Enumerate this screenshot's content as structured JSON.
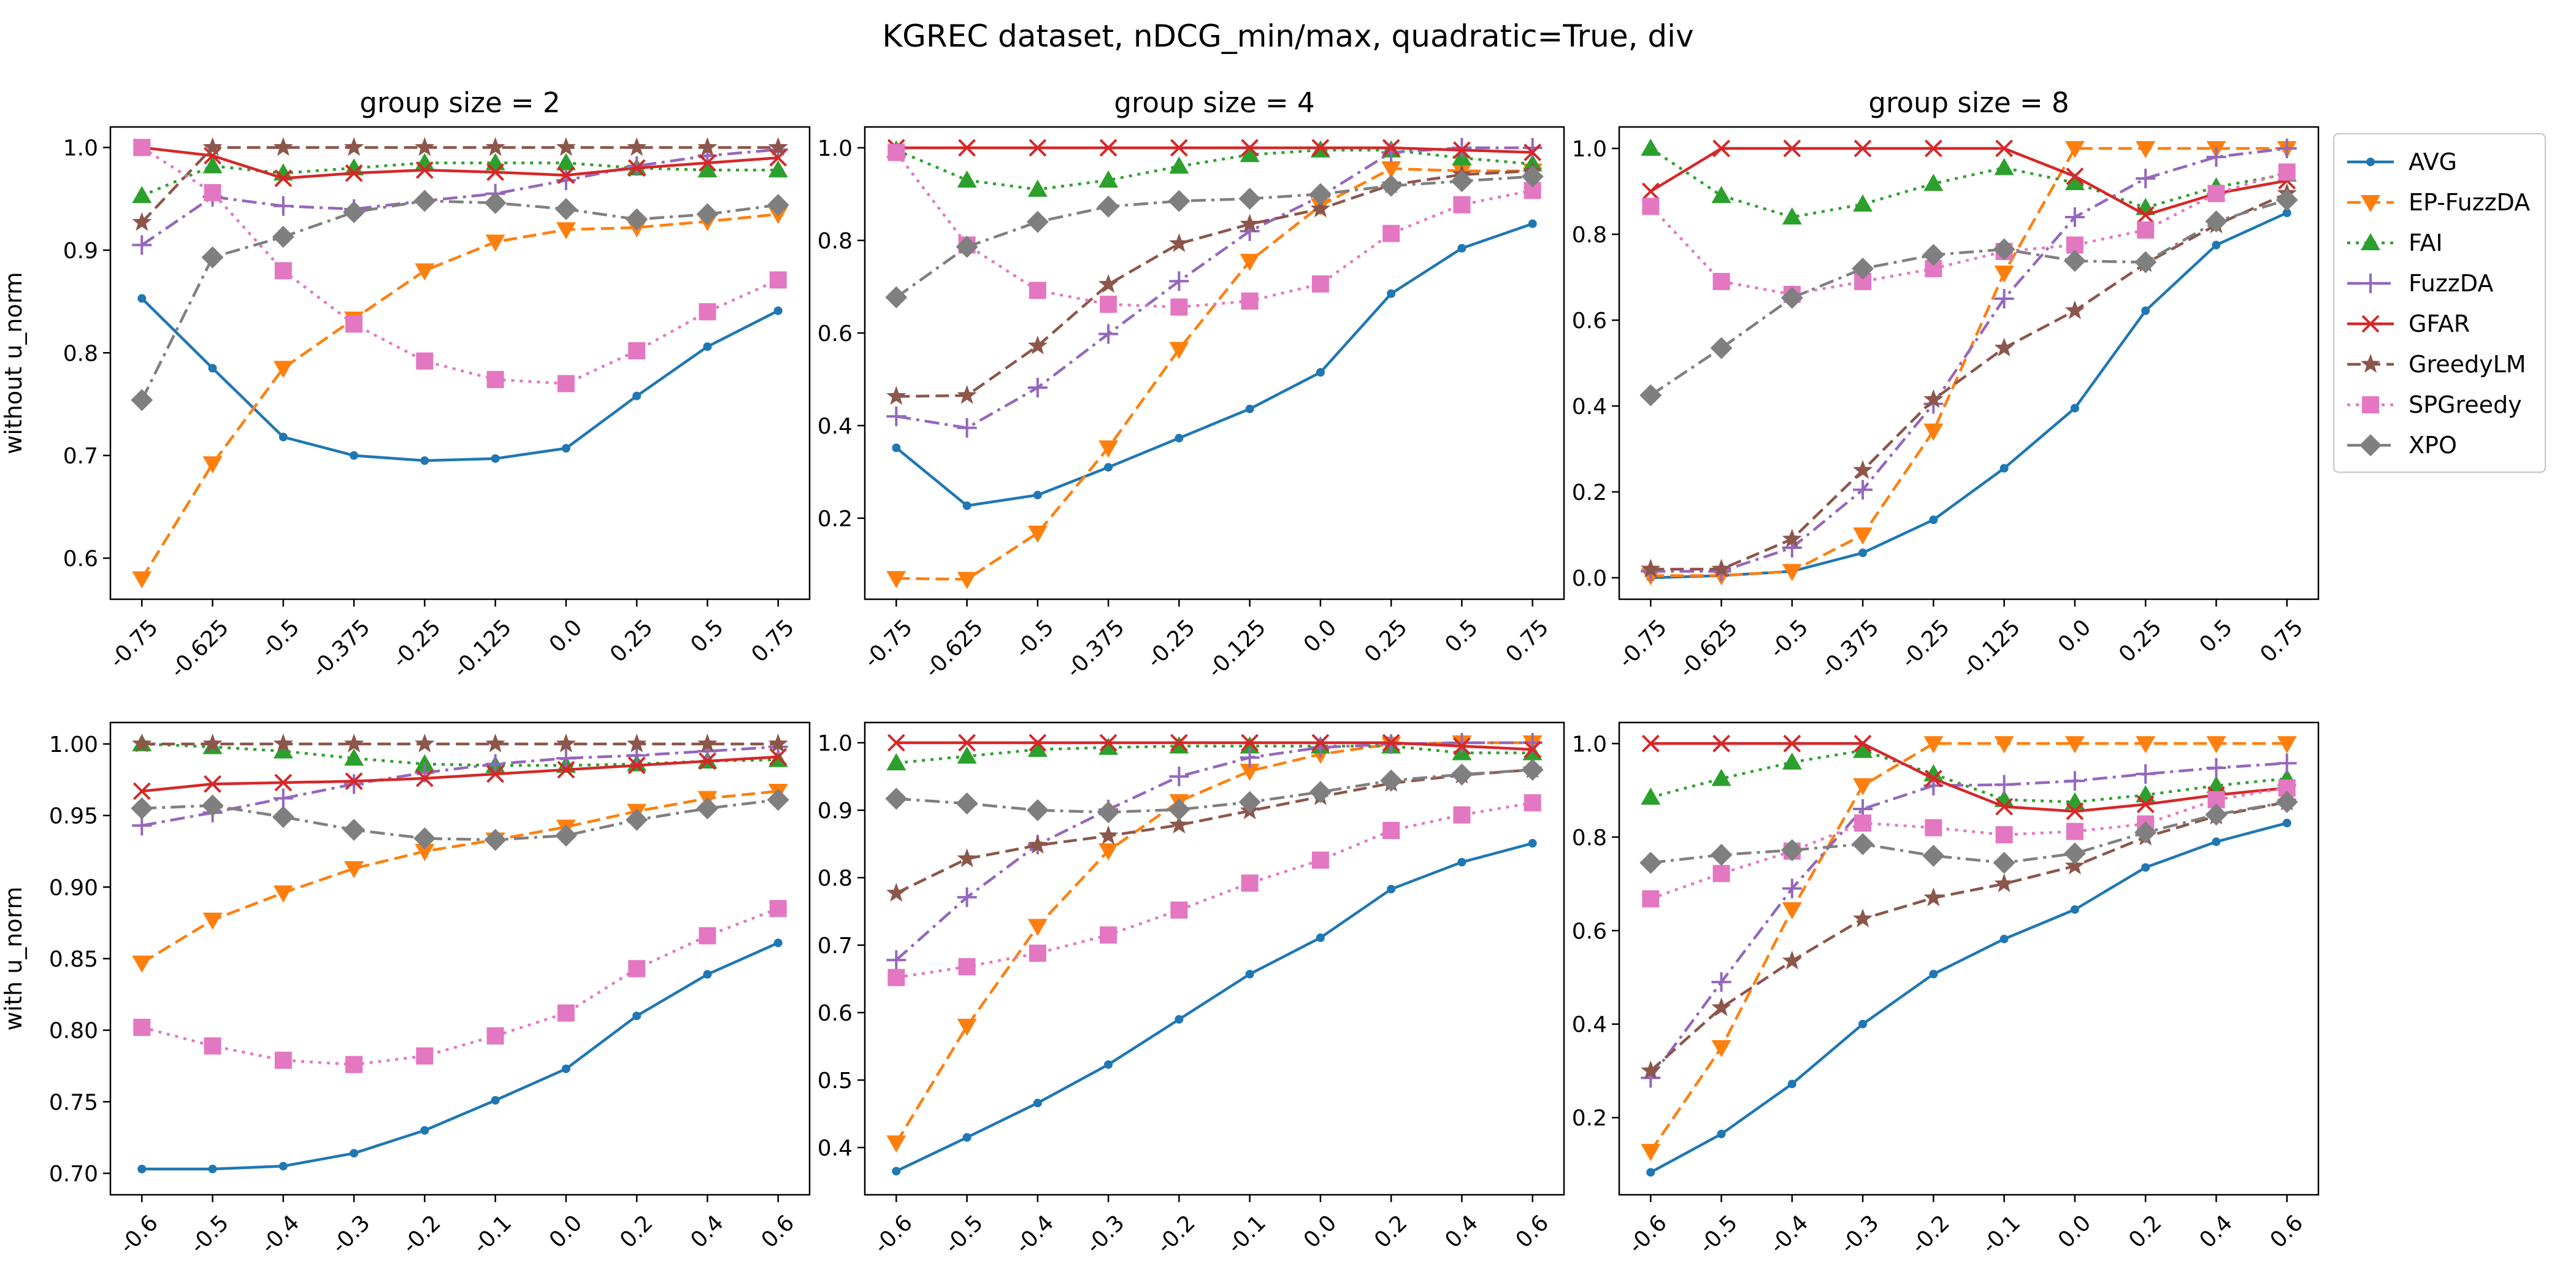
{
  "figure": {
    "title": "KGREC dataset, nDCG_min/max, quadratic=True, div"
  },
  "legend": {
    "placement": "right, outside, upper",
    "entries": [
      "AVG",
      "EP-FuzzDA",
      "FAI",
      "FuzzDA",
      "GFAR",
      "GreedyLM",
      "SPGreedy",
      "XPO"
    ]
  },
  "series_styles": [
    {
      "name": "AVG",
      "color": "#1f77b4",
      "line": "solid",
      "marker": "dot"
    },
    {
      "name": "EP-FuzzDA",
      "color": "#ff7f0e",
      "line": "dashed",
      "marker": "triangle-down"
    },
    {
      "name": "FAI",
      "color": "#2ca02c",
      "line": "dotted",
      "marker": "triangle-up"
    },
    {
      "name": "FuzzDA",
      "color": "#9467bd",
      "line": "dashdot",
      "marker": "plus"
    },
    {
      "name": "GFAR",
      "color": "#d62728",
      "line": "solid",
      "marker": "x"
    },
    {
      "name": "GreedyLM",
      "color": "#8c564b",
      "line": "dashed",
      "marker": "star"
    },
    {
      "name": "SPGreedy",
      "color": "#e377c2",
      "line": "dotted",
      "marker": "square"
    },
    {
      "name": "XPO",
      "color": "#7f7f7f",
      "line": "dashdot",
      "marker": "diamond"
    }
  ],
  "chart_data": [
    {
      "type": "line",
      "title": "group size = 2",
      "ylabel": "without u_norm",
      "xlabel": "",
      "categories": [
        "-0.75",
        "-0.625",
        "-0.5",
        "-0.375",
        "-0.25",
        "-0.125",
        "0.0",
        "0.25",
        "0.5",
        "0.75"
      ],
      "ylim": [
        0.56,
        1.02
      ],
      "yticks": [
        0.6,
        0.7,
        0.8,
        0.9,
        1.0
      ],
      "grid": false,
      "series": [
        {
          "name": "AVG",
          "values": [
            0.853,
            0.785,
            0.718,
            0.7,
            0.695,
            0.697,
            0.707,
            0.758,
            0.806,
            0.841
          ]
        },
        {
          "name": "EP-FuzzDA",
          "values": [
            0.58,
            0.692,
            0.785,
            0.833,
            0.88,
            0.908,
            0.92,
            0.922,
            0.928,
            0.935
          ]
        },
        {
          "name": "FAI",
          "values": [
            0.953,
            0.982,
            0.975,
            0.98,
            0.985,
            0.985,
            0.985,
            0.98,
            0.978,
            0.978
          ]
        },
        {
          "name": "FuzzDA",
          "values": [
            0.905,
            0.952,
            0.943,
            0.94,
            0.948,
            0.955,
            0.968,
            0.982,
            0.992,
            0.998
          ]
        },
        {
          "name": "GFAR",
          "values": [
            1.0,
            0.992,
            0.97,
            0.975,
            0.978,
            0.976,
            0.973,
            0.98,
            0.985,
            0.99
          ]
        },
        {
          "name": "GreedyLM",
          "values": [
            0.927,
            1.0,
            1.0,
            1.0,
            1.0,
            1.0,
            1.0,
            1.0,
            1.0,
            1.0
          ]
        },
        {
          "name": "SPGreedy",
          "values": [
            1.0,
            0.956,
            0.88,
            0.828,
            0.792,
            0.774,
            0.77,
            0.802,
            0.84,
            0.871
          ]
        },
        {
          "name": "XPO",
          "values": [
            0.754,
            0.893,
            0.913,
            0.937,
            0.948,
            0.946,
            0.94,
            0.93,
            0.935,
            0.944
          ]
        }
      ]
    },
    {
      "type": "line",
      "title": "group size = 4",
      "ylabel": "",
      "xlabel": "",
      "categories": [
        "-0.75",
        "-0.625",
        "-0.5",
        "-0.375",
        "-0.25",
        "-0.125",
        "0.0",
        "0.25",
        "0.5",
        "0.75"
      ],
      "ylim": [
        0.025,
        1.045
      ],
      "yticks": [
        0.2,
        0.4,
        0.6,
        0.8,
        1.0
      ],
      "grid": false,
      "series": [
        {
          "name": "AVG",
          "values": [
            0.352,
            0.227,
            0.25,
            0.31,
            0.373,
            0.436,
            0.515,
            0.685,
            0.783,
            0.836
          ]
        },
        {
          "name": "EP-FuzzDA",
          "values": [
            0.07,
            0.068,
            0.168,
            0.352,
            0.565,
            0.755,
            0.875,
            0.955,
            0.95,
            0.95
          ]
        },
        {
          "name": "FAI",
          "values": [
            0.995,
            0.93,
            0.91,
            0.93,
            0.96,
            0.985,
            0.995,
            0.995,
            0.978,
            0.965
          ]
        },
        {
          "name": "FuzzDA",
          "values": [
            0.42,
            0.395,
            0.482,
            0.598,
            0.712,
            0.82,
            0.895,
            0.99,
            1.0,
            1.0
          ]
        },
        {
          "name": "GFAR",
          "values": [
            1.0,
            1.0,
            1.0,
            1.0,
            1.0,
            1.0,
            1.0,
            1.0,
            0.995,
            0.99
          ]
        },
        {
          "name": "GreedyLM",
          "values": [
            0.463,
            0.465,
            0.572,
            0.705,
            0.793,
            0.835,
            0.868,
            0.92,
            0.942,
            0.95
          ]
        },
        {
          "name": "SPGreedy",
          "values": [
            0.99,
            0.79,
            0.692,
            0.662,
            0.656,
            0.669,
            0.706,
            0.815,
            0.877,
            0.908
          ]
        },
        {
          "name": "XPO",
          "values": [
            0.677,
            0.786,
            0.84,
            0.873,
            0.885,
            0.89,
            0.9,
            0.918,
            0.928,
            0.938
          ]
        }
      ]
    },
    {
      "type": "line",
      "title": "group size = 8",
      "ylabel": "",
      "xlabel": "",
      "categories": [
        "-0.75",
        "-0.625",
        "-0.5",
        "-0.375",
        "-0.25",
        "-0.125",
        "0.0",
        "0.25",
        "0.5",
        "0.75"
      ],
      "ylim": [
        -0.05,
        1.05
      ],
      "yticks": [
        0.0,
        0.2,
        0.4,
        0.6,
        0.8,
        1.0
      ],
      "grid": false,
      "series": [
        {
          "name": "AVG",
          "values": [
            0.0,
            0.005,
            0.015,
            0.058,
            0.135,
            0.255,
            0.395,
            0.622,
            0.775,
            0.85
          ]
        },
        {
          "name": "EP-FuzzDA",
          "values": [
            0.005,
            0.005,
            0.015,
            0.1,
            0.342,
            0.71,
            1.0,
            1.0,
            1.0,
            1.0
          ]
        },
        {
          "name": "FAI",
          "values": [
            1.0,
            0.89,
            0.84,
            0.87,
            0.918,
            0.955,
            0.92,
            0.862,
            0.91,
            0.94
          ]
        },
        {
          "name": "FuzzDA",
          "values": [
            0.015,
            0.015,
            0.07,
            0.205,
            0.405,
            0.65,
            0.84,
            0.93,
            0.98,
            1.0
          ]
        },
        {
          "name": "GFAR",
          "values": [
            0.9,
            1.0,
            1.0,
            1.0,
            1.0,
            1.0,
            0.935,
            0.845,
            0.895,
            0.925
          ]
        },
        {
          "name": "GreedyLM",
          "values": [
            0.02,
            0.02,
            0.09,
            0.25,
            0.415,
            0.535,
            0.622,
            0.732,
            0.822,
            0.895
          ]
        },
        {
          "name": "SPGreedy",
          "values": [
            0.865,
            0.69,
            0.66,
            0.69,
            0.72,
            0.76,
            0.775,
            0.81,
            0.895,
            0.945
          ]
        },
        {
          "name": "XPO",
          "values": [
            0.425,
            0.535,
            0.652,
            0.72,
            0.752,
            0.765,
            0.738,
            0.735,
            0.83,
            0.88
          ]
        }
      ]
    },
    {
      "type": "line",
      "title": "",
      "ylabel": "with u_norm",
      "xlabel": "",
      "categories": [
        "-0.6",
        "-0.5",
        "-0.4",
        "-0.3",
        "-0.2",
        "-0.1",
        "0.0",
        "0.2",
        "0.4",
        "0.6"
      ],
      "ylim": [
        0.685,
        1.015
      ],
      "yticks": [
        0.7,
        0.75,
        0.8,
        0.85,
        0.9,
        0.95,
        1.0
      ],
      "grid": false,
      "series": [
        {
          "name": "AVG",
          "values": [
            0.703,
            0.703,
            0.705,
            0.714,
            0.73,
            0.751,
            0.773,
            0.81,
            0.839,
            0.861
          ]
        },
        {
          "name": "EP-FuzzDA",
          "values": [
            0.847,
            0.877,
            0.896,
            0.913,
            0.925,
            0.933,
            0.942,
            0.953,
            0.962,
            0.967
          ]
        },
        {
          "name": "FAI",
          "values": [
            1.0,
            0.998,
            0.995,
            0.99,
            0.986,
            0.985,
            0.985,
            0.986,
            0.988,
            0.989
          ]
        },
        {
          "name": "FuzzDA",
          "values": [
            0.943,
            0.952,
            0.962,
            0.972,
            0.98,
            0.986,
            0.99,
            0.992,
            0.995,
            0.998
          ]
        },
        {
          "name": "GFAR",
          "values": [
            0.967,
            0.972,
            0.973,
            0.974,
            0.976,
            0.979,
            0.982,
            0.985,
            0.988,
            0.991
          ]
        },
        {
          "name": "GreedyLM",
          "values": [
            1.0,
            1.0,
            1.0,
            1.0,
            1.0,
            1.0,
            1.0,
            1.0,
            1.0,
            1.0
          ]
        },
        {
          "name": "SPGreedy",
          "values": [
            0.802,
            0.789,
            0.779,
            0.776,
            0.782,
            0.796,
            0.812,
            0.843,
            0.866,
            0.885
          ]
        },
        {
          "name": "XPO",
          "values": [
            0.955,
            0.957,
            0.949,
            0.94,
            0.934,
            0.933,
            0.936,
            0.947,
            0.955,
            0.961
          ]
        }
      ]
    },
    {
      "type": "line",
      "title": "",
      "ylabel": "",
      "xlabel": "",
      "categories": [
        "-0.6",
        "-0.5",
        "-0.4",
        "-0.3",
        "-0.2",
        "-0.1",
        "0.0",
        "0.2",
        "0.4",
        "0.6"
      ],
      "ylim": [
        0.33,
        1.03
      ],
      "yticks": [
        0.4,
        0.5,
        0.6,
        0.7,
        0.8,
        0.9,
        1.0
      ],
      "grid": false,
      "series": [
        {
          "name": "AVG",
          "values": [
            0.365,
            0.415,
            0.466,
            0.523,
            0.59,
            0.657,
            0.711,
            0.783,
            0.823,
            0.851
          ]
        },
        {
          "name": "EP-FuzzDA",
          "values": [
            0.407,
            0.58,
            0.728,
            0.84,
            0.913,
            0.958,
            0.983,
            0.998,
            1.0,
            1.0
          ]
        },
        {
          "name": "FAI",
          "values": [
            0.97,
            0.98,
            0.99,
            0.993,
            0.995,
            0.995,
            0.995,
            0.995,
            0.985,
            0.985
          ]
        },
        {
          "name": "FuzzDA",
          "values": [
            0.678,
            0.771,
            0.849,
            0.901,
            0.95,
            0.978,
            0.993,
            0.998,
            1.0,
            1.0
          ]
        },
        {
          "name": "GFAR",
          "values": [
            1.0,
            1.0,
            1.0,
            1.0,
            1.0,
            1.0,
            1.0,
            1.0,
            0.995,
            0.99
          ]
        },
        {
          "name": "GreedyLM",
          "values": [
            0.777,
            0.828,
            0.848,
            0.862,
            0.878,
            0.899,
            0.92,
            0.94,
            0.952,
            0.96
          ]
        },
        {
          "name": "SPGreedy",
          "values": [
            0.652,
            0.668,
            0.688,
            0.715,
            0.752,
            0.792,
            0.826,
            0.87,
            0.893,
            0.911
          ]
        },
        {
          "name": "XPO",
          "values": [
            0.917,
            0.91,
            0.9,
            0.897,
            0.901,
            0.912,
            0.927,
            0.944,
            0.953,
            0.96
          ]
        }
      ]
    },
    {
      "type": "line",
      "title": "",
      "ylabel": "",
      "xlabel": "",
      "categories": [
        "-0.6",
        "-0.5",
        "-0.4",
        "-0.3",
        "-0.2",
        "-0.1",
        "0.0",
        "0.2",
        "0.4",
        "0.6"
      ],
      "ylim": [
        0.035,
        1.045
      ],
      "yticks": [
        0.2,
        0.4,
        0.6,
        0.8,
        1.0
      ],
      "grid": false,
      "series": [
        {
          "name": "AVG",
          "values": [
            0.083,
            0.165,
            0.272,
            0.4,
            0.507,
            0.582,
            0.645,
            0.735,
            0.79,
            0.83
          ]
        },
        {
          "name": "EP-FuzzDA",
          "values": [
            0.128,
            0.35,
            0.645,
            0.91,
            1.0,
            1.0,
            1.0,
            1.0,
            1.0,
            1.0
          ]
        },
        {
          "name": "FAI",
          "values": [
            0.885,
            0.925,
            0.96,
            0.985,
            0.935,
            0.88,
            0.875,
            0.89,
            0.91,
            0.925
          ]
        },
        {
          "name": "FuzzDA",
          "values": [
            0.285,
            0.49,
            0.69,
            0.86,
            0.91,
            0.912,
            0.92,
            0.935,
            0.948,
            0.958
          ]
        },
        {
          "name": "GFAR",
          "values": [
            1.0,
            1.0,
            1.0,
            1.0,
            0.925,
            0.865,
            0.855,
            0.87,
            0.89,
            0.905
          ]
        },
        {
          "name": "GreedyLM",
          "values": [
            0.3,
            0.435,
            0.535,
            0.625,
            0.67,
            0.7,
            0.738,
            0.8,
            0.845,
            0.875
          ]
        },
        {
          "name": "SPGreedy",
          "values": [
            0.668,
            0.722,
            0.77,
            0.83,
            0.82,
            0.805,
            0.812,
            0.828,
            0.88,
            0.905
          ]
        },
        {
          "name": "XPO",
          "values": [
            0.745,
            0.762,
            0.772,
            0.785,
            0.76,
            0.745,
            0.765,
            0.81,
            0.848,
            0.875
          ]
        }
      ]
    }
  ]
}
